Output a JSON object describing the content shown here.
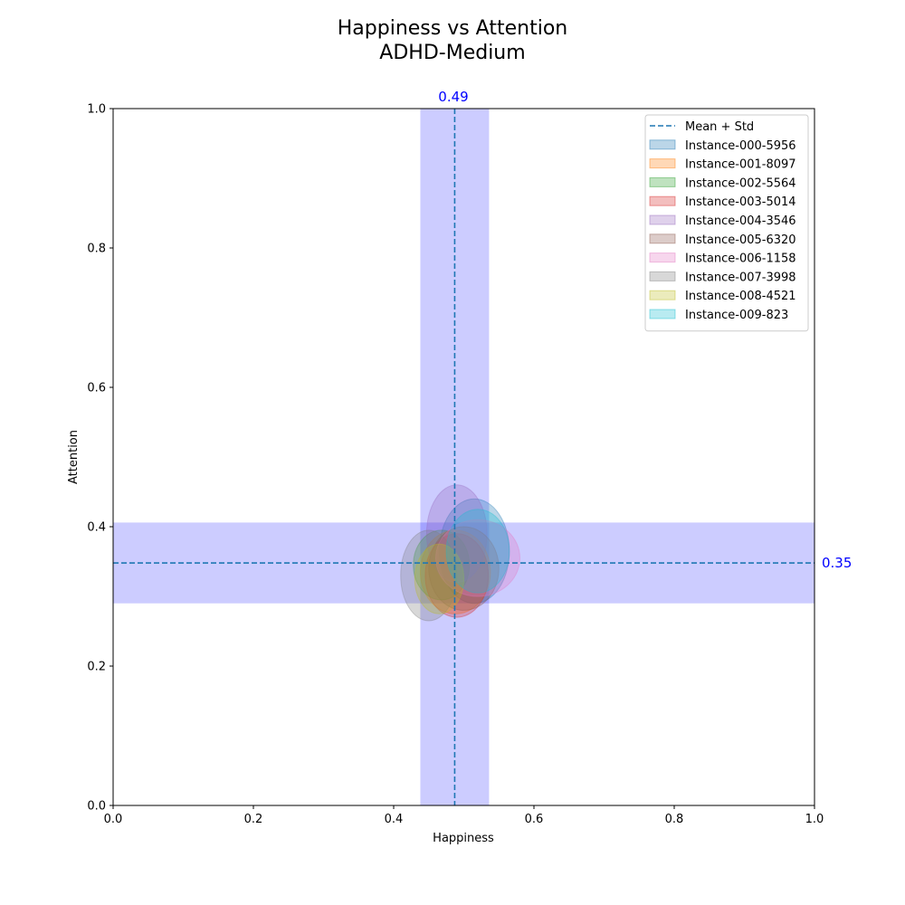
{
  "chart_data": {
    "type": "scatter",
    "title": "Happiness vs Attention",
    "subtitle": "ADHD-Medium",
    "xlabel": "Happiness",
    "ylabel": "Attention",
    "xlim": [
      0.0,
      1.0
    ],
    "ylim": [
      0.0,
      1.0
    ],
    "xticks": [
      "0.0",
      "0.2",
      "0.4",
      "0.6",
      "0.8",
      "1.0"
    ],
    "yticks": [
      "0.0",
      "0.2",
      "0.4",
      "0.6",
      "0.8",
      "1.0"
    ],
    "grid": false,
    "legend_position": "upper right",
    "mean": {
      "label": "Mean + Std",
      "x": 0.487,
      "y": 0.348,
      "x_label": "0.49",
      "y_label": "0.35",
      "x_std": 0.049,
      "y_std": 0.058,
      "line_color": "#1f77b4",
      "band_color": "#0000ff",
      "label_color": "#0000ff"
    },
    "series": [
      {
        "name": "Instance-000-5956",
        "color": "#1f77b4",
        "x": 0.515,
        "y": 0.365,
        "rx": 0.05,
        "ry": 0.075
      },
      {
        "name": "Instance-001-8097",
        "color": "#ff7f0e",
        "x": 0.488,
        "y": 0.335,
        "rx": 0.05,
        "ry": 0.06
      },
      {
        "name": "Instance-002-5564",
        "color": "#2ca02c",
        "x": 0.468,
        "y": 0.345,
        "rx": 0.04,
        "ry": 0.05
      },
      {
        "name": "Instance-003-5014",
        "color": "#d62728",
        "x": 0.49,
        "y": 0.33,
        "rx": 0.045,
        "ry": 0.06
      },
      {
        "name": "Instance-004-3546",
        "color": "#9467bd",
        "x": 0.49,
        "y": 0.39,
        "rx": 0.043,
        "ry": 0.07
      },
      {
        "name": "Instance-005-6320",
        "color": "#8c564b",
        "x": 0.5,
        "y": 0.34,
        "rx": 0.05,
        "ry": 0.06
      },
      {
        "name": "Instance-006-1158",
        "color": "#e377c2",
        "x": 0.52,
        "y": 0.355,
        "rx": 0.06,
        "ry": 0.055
      },
      {
        "name": "Instance-007-3998",
        "color": "#7f7f7f",
        "x": 0.45,
        "y": 0.33,
        "rx": 0.04,
        "ry": 0.065
      },
      {
        "name": "Instance-008-4521",
        "color": "#bcbd22",
        "x": 0.465,
        "y": 0.325,
        "rx": 0.035,
        "ry": 0.05
      },
      {
        "name": "Instance-009-823",
        "color": "#17becf",
        "x": 0.52,
        "y": 0.365,
        "rx": 0.045,
        "ry": 0.06
      }
    ]
  }
}
